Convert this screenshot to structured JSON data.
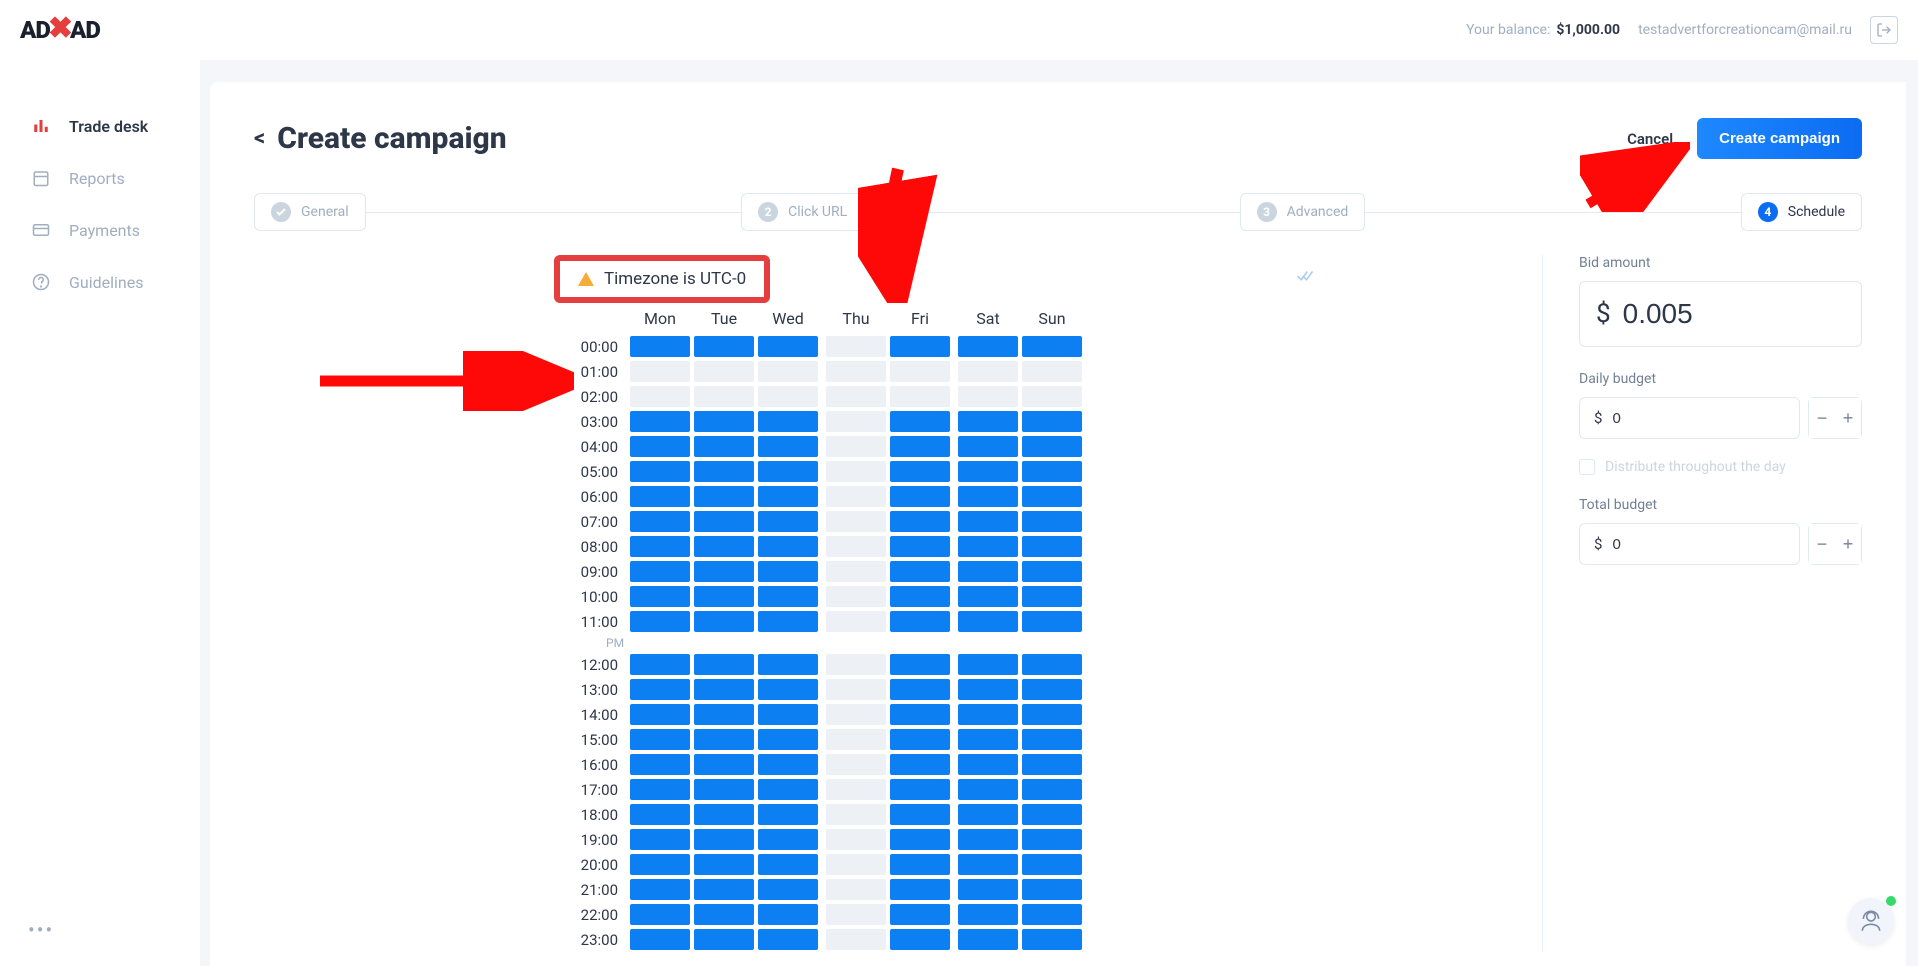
{
  "header": {
    "logo_text_1": "AD",
    "logo_text_2": "AD",
    "balance_label": "Your balance:",
    "balance_amount": "$1,000.00",
    "user_email": "testadvertforcreationcam@mail.ru"
  },
  "sidebar": {
    "items": [
      {
        "label": "Trade desk",
        "icon": "bars",
        "active": true
      },
      {
        "label": "Reports",
        "icon": "calendar",
        "active": false
      },
      {
        "label": "Payments",
        "icon": "card",
        "active": false
      },
      {
        "label": "Guidelines",
        "icon": "help",
        "active": false
      }
    ]
  },
  "page": {
    "title": "Create campaign",
    "cancel": "Cancel",
    "create": "Create campaign"
  },
  "steps": [
    {
      "label": "General",
      "state": "done"
    },
    {
      "num": "2",
      "label": "Click URL",
      "state": "num"
    },
    {
      "num": "3",
      "label": "Advanced",
      "state": "num"
    },
    {
      "num": "4",
      "label": "Schedule",
      "state": "current"
    }
  ],
  "schedule": {
    "timezone_text": "Timezone is UTC-0",
    "days": [
      "Mon",
      "Tue",
      "Wed",
      "Thu",
      "Fri",
      "Sat",
      "Sun"
    ],
    "gap_after_day_index": [
      2,
      4
    ],
    "hours": [
      "00:00",
      "01:00",
      "02:00",
      "03:00",
      "04:00",
      "05:00",
      "06:00",
      "07:00",
      "08:00",
      "09:00",
      "10:00",
      "11:00",
      "PM",
      "12:00",
      "13:00",
      "14:00",
      "15:00",
      "16:00",
      "17:00",
      "18:00",
      "19:00",
      "20:00",
      "21:00",
      "22:00",
      "23:00"
    ],
    "selected": {
      "thu_all_off": true,
      "rows_all_off": [
        "01:00",
        "02:00"
      ],
      "default": "on"
    },
    "colors": {
      "on": "#0c7ff2",
      "off": "#edf0f5"
    }
  },
  "side": {
    "bid_label": "Bid amount",
    "bid_currency": "$",
    "bid_value": "0.005",
    "daily_label": "Daily budget",
    "daily_value": "0",
    "distribute_label": "Distribute throughout the day",
    "total_label": "Total budget",
    "total_value": "0"
  },
  "annotations": {
    "tz_box_border": "#e53e3e",
    "arrow_color": "#ff0808"
  }
}
